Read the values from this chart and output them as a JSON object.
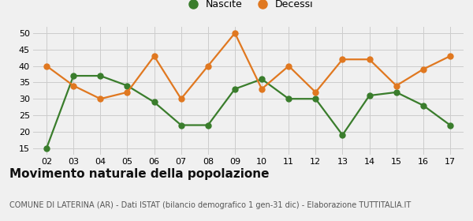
{
  "years": [
    "02",
    "03",
    "04",
    "05",
    "06",
    "07",
    "08",
    "09",
    "10",
    "11",
    "12",
    "13",
    "14",
    "15",
    "16",
    "17"
  ],
  "nascite": [
    15,
    37,
    37,
    34,
    29,
    22,
    22,
    33,
    36,
    30,
    30,
    19,
    31,
    32,
    28,
    22
  ],
  "decessi": [
    40,
    34,
    30,
    32,
    43,
    30,
    40,
    50,
    33,
    40,
    32,
    42,
    42,
    34,
    39,
    43
  ],
  "nascite_color": "#3a7d2c",
  "decessi_color": "#e07820",
  "bg_color": "#f0f0f0",
  "plot_bg_color": "#f0f0f0",
  "title": "Movimento naturale della popolazione",
  "subtitle": "COMUNE DI LATERINA (AR) - Dati ISTAT (bilancio demografico 1 gen-31 dic) - Elaborazione TUTTITALIA.IT",
  "ylabel_ticks": [
    15,
    20,
    25,
    30,
    35,
    40,
    45,
    50
  ],
  "ylim": [
    13,
    52
  ],
  "title_fontsize": 11,
  "subtitle_fontsize": 7,
  "tick_fontsize": 8,
  "legend_fontsize": 9,
  "marker_size": 5,
  "line_width": 1.6
}
